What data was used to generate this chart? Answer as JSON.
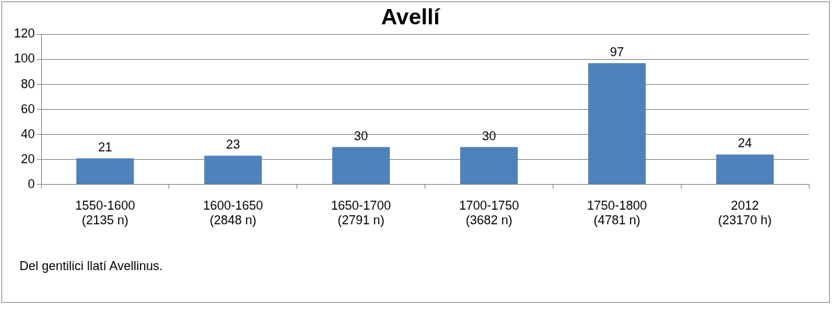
{
  "chart_data": {
    "type": "bar",
    "title": "Avellí",
    "categories": [
      "1550-1600\n(2135 n)",
      "1600-1650\n(2848 n)",
      "1650-1700\n(2791 n)",
      "1700-1750\n(3682 n)",
      "1750-1800\n(4781 n)",
      "2012\n(23170 h)"
    ],
    "values": [
      21,
      23,
      30,
      30,
      97,
      24
    ],
    "color": "#4f81bd",
    "ylim": [
      0,
      120
    ],
    "yticks": [
      0,
      20,
      40,
      60,
      80,
      100,
      120
    ],
    "grid": "y",
    "data_labels": true,
    "annotations": [
      "Del gentilici llatí Avellinus."
    ]
  }
}
